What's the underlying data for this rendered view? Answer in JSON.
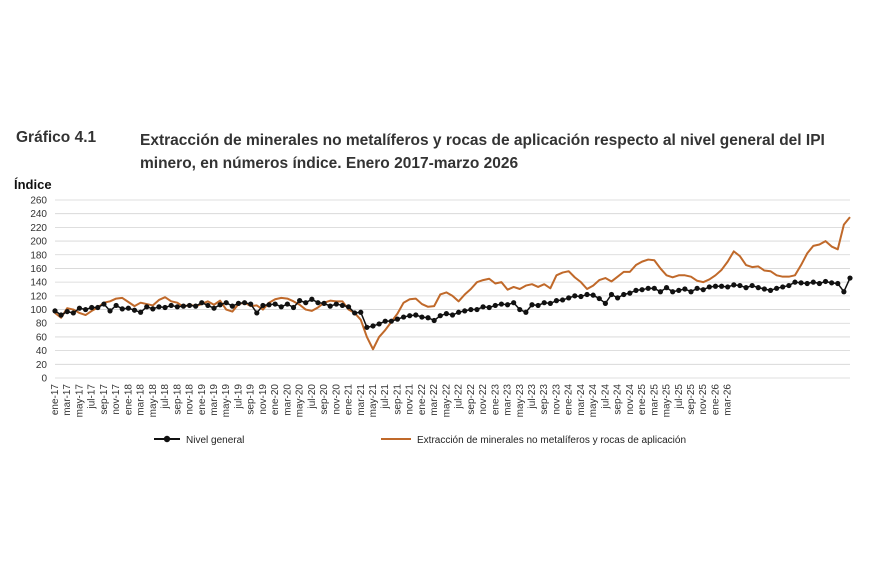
{
  "figure_label": "Gráfico 4.1",
  "title": "Extracción de minerales no metalíferos y rocas de aplicación respecto al nivel general del IPI minero, en números índice. Enero 2017-marzo 2026",
  "chart_data": {
    "type": "line",
    "ylabel": "Índice",
    "ylim": [
      0,
      260
    ],
    "yticks": [
      0,
      20,
      40,
      60,
      80,
      100,
      120,
      140,
      160,
      180,
      200,
      220,
      240,
      260
    ],
    "grid": true,
    "legend_position": "bottom",
    "x_tick_labels": [
      "ene-17",
      "mar-17",
      "may-17",
      "jul-17",
      "sep-17",
      "nov-17",
      "ene-18",
      "mar-18",
      "may-18",
      "jul-18",
      "sep-18",
      "nov-18",
      "ene-19",
      "mar-19",
      "may-19",
      "jul-19",
      "sep-19",
      "nov-19",
      "ene-20",
      "mar-20",
      "may-20",
      "jul-20",
      "sep-20",
      "nov-20",
      "ene-21",
      "mar-21",
      "may-21",
      "jul-21",
      "sep-21",
      "nov-21",
      "ene-22",
      "mar-22",
      "may-22",
      "jul-22",
      "sep-22",
      "nov-22",
      "ene-23",
      "mar-23",
      "may-23",
      "jul-23",
      "sep-23",
      "nov-23",
      "ene-24",
      "mar-24",
      "may-24",
      "jul-24",
      "sep-24",
      "nov-24",
      "ene-25",
      "mar-25",
      "may-25",
      "jul-25",
      "sep-25",
      "nov-25",
      "ene-26",
      "mar-26"
    ],
    "series": [
      {
        "name": "Nivel general",
        "color": "#111111",
        "marker": "circle",
        "values": [
          98,
          92,
          97,
          95,
          102,
          100,
          103,
          103,
          108,
          98,
          106,
          101,
          102,
          99,
          96,
          104,
          101,
          104,
          103,
          106,
          104,
          105,
          106,
          105,
          110,
          106,
          102,
          107,
          110,
          105,
          109,
          110,
          108,
          95,
          106,
          107,
          108,
          104,
          108,
          103,
          113,
          110,
          115,
          110,
          109,
          105,
          108,
          106,
          104,
          95,
          96,
          74,
          76,
          79,
          83,
          83,
          86,
          89,
          91,
          92,
          89,
          88,
          84,
          91,
          94,
          92,
          96,
          98,
          100,
          100,
          104,
          103,
          106,
          108,
          107,
          110,
          100,
          96,
          107,
          106,
          110,
          109,
          113,
          114,
          117,
          120,
          119,
          122,
          121,
          116,
          109,
          122,
          117,
          122,
          124,
          128,
          129,
          131,
          131,
          126,
          132,
          126,
          128,
          130,
          126,
          131,
          129,
          133,
          134,
          134,
          133,
          136,
          135,
          132,
          135,
          132,
          130,
          128,
          131,
          133,
          135,
          140,
          139,
          138,
          140,
          138,
          141,
          139,
          138,
          126,
          146
        ]
      },
      {
        "name": "Extracción de minerales no metalíferos y rocas de aplicación",
        "color": "#c0692a",
        "marker": "none",
        "values": [
          95,
          88,
          102,
          100,
          95,
          92,
          98,
          103,
          110,
          112,
          116,
          117,
          111,
          105,
          110,
          108,
          106,
          114,
          118,
          112,
          110,
          104,
          107,
          105,
          108,
          112,
          107,
          113,
          100,
          97,
          108,
          110,
          105,
          106,
          100,
          110,
          115,
          117,
          116,
          112,
          107,
          100,
          98,
          103,
          110,
          113,
          112,
          112,
          100,
          95,
          85,
          60,
          42,
          60,
          70,
          82,
          94,
          110,
          115,
          116,
          108,
          104,
          105,
          122,
          125,
          120,
          112,
          122,
          130,
          140,
          143,
          145,
          138,
          140,
          129,
          133,
          130,
          135,
          137,
          133,
          137,
          131,
          150,
          154,
          156,
          147,
          140,
          130,
          135,
          143,
          146,
          141,
          148,
          155,
          155,
          165,
          170,
          173,
          172,
          160,
          150,
          147,
          150,
          150,
          148,
          142,
          140,
          144,
          150,
          158,
          170,
          185,
          178,
          165,
          162,
          163,
          157,
          156,
          150,
          148,
          148,
          150,
          165,
          182,
          193,
          195,
          200,
          192,
          188,
          224,
          235
        ]
      }
    ]
  }
}
